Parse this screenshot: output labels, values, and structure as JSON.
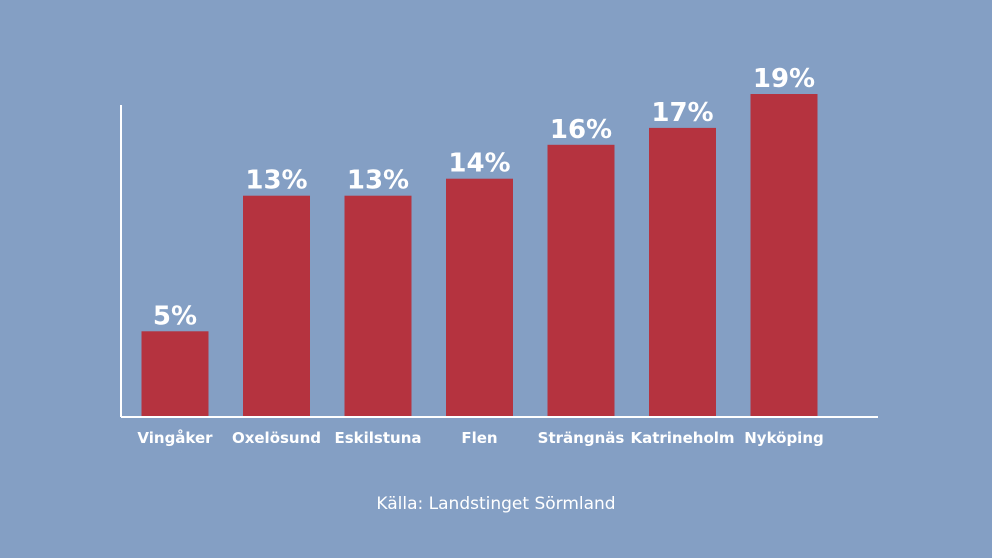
{
  "chart_data": {
    "type": "bar",
    "categories": [
      "Vingåker",
      "Oxelösund",
      "Eskilstuna",
      "Flen",
      "Strängnäs",
      "Katrineholm",
      "Nyköping"
    ],
    "values": [
      5,
      13,
      13,
      14,
      16,
      17,
      19
    ],
    "value_labels": [
      "5%",
      "13%",
      "13%",
      "14%",
      "16%",
      "17%",
      "19%"
    ],
    "ylim": [
      0,
      19
    ],
    "grid": false,
    "legend": "none",
    "bar_color": "#b5333f",
    "background_color": "#849fc4",
    "text_color": "#ffffff"
  },
  "source": "Källa: Landstinget Sörmland"
}
